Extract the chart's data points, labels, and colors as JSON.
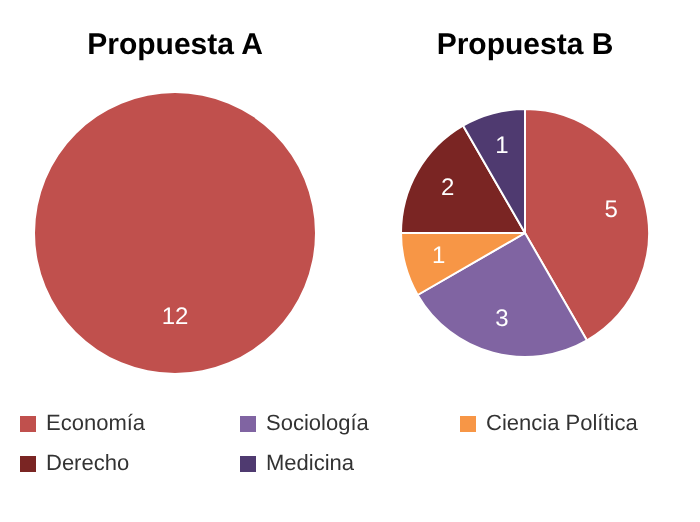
{
  "chart_data": [
    {
      "type": "pie",
      "title": "Propuesta A",
      "categories": [
        null
      ],
      "values": [
        12
      ],
      "colors": [
        "#c0504d"
      ],
      "data_labels": true
    },
    {
      "type": "pie",
      "title": "Propuesta B",
      "categories": [
        "Economía",
        "Sociología",
        "Ciencia Política",
        "Derecho",
        "Medicina"
      ],
      "values": [
        5,
        3,
        1,
        2,
        1
      ],
      "colors": [
        "#c0504d",
        "#8064a2",
        "#f79646",
        "#7a2523",
        "#4f3a70"
      ],
      "data_labels": true,
      "legend": "bottom"
    }
  ]
}
